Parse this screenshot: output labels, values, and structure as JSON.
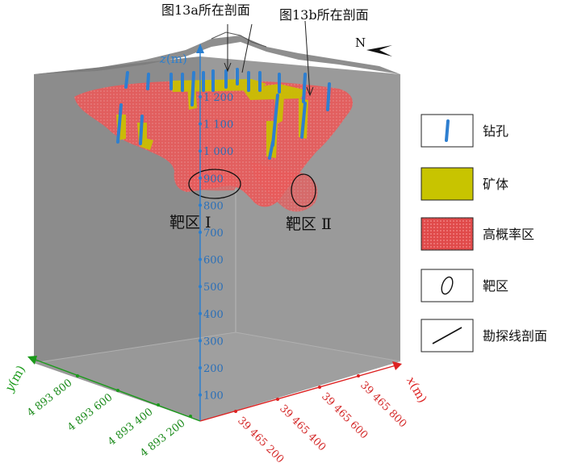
{
  "callouts": {
    "section_a": "图13a所在剖面",
    "section_b": "图13b所在剖面"
  },
  "north": "N",
  "axes": {
    "z": {
      "label_var": "z",
      "label_unit": "(m)",
      "ticks": [
        "1 200",
        "1 100",
        "1 000",
        "900",
        "800",
        "700",
        "600",
        "500",
        "400",
        "300",
        "200",
        "100"
      ],
      "color": "#2a7fd0"
    },
    "y": {
      "label_var": "y",
      "label_unit": "(m)",
      "ticks": [
        "4 893 800",
        "4 893 600",
        "4 893 400",
        "4 893 200"
      ],
      "color": "#1a9a1a"
    },
    "x": {
      "label_var": "x",
      "label_unit": "(m)",
      "ticks": [
        "39 465 200",
        "39 465 400",
        "39 465 600",
        "39 465 800"
      ],
      "color": "#dd2222"
    }
  },
  "zones": {
    "zone1": "靶区 Ⅰ",
    "zone2": "靶区 Ⅱ"
  },
  "legend": [
    {
      "key": "drillhole",
      "label": "钻孔",
      "color": "#2e7fd0"
    },
    {
      "key": "orebody",
      "label": "矿体",
      "color": "#c8c400"
    },
    {
      "key": "high_prob",
      "label": "高概率区",
      "color": "#e05858"
    },
    {
      "key": "target",
      "label": "靶区",
      "color": "#111111"
    },
    {
      "key": "section",
      "label": "勘探线剖面",
      "color": "#111111"
    }
  ]
}
